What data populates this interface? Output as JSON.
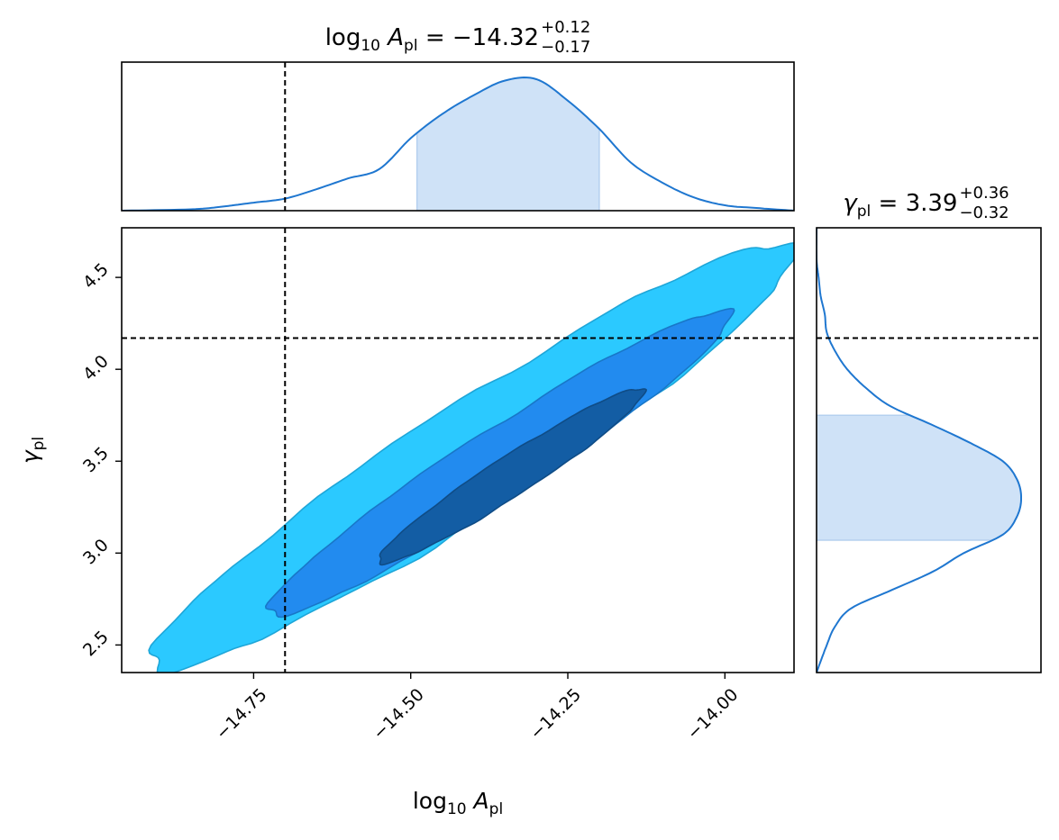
{
  "chart_data": {
    "type": "corner",
    "params": [
      {
        "id": "log10_A_pl",
        "label_base": "log",
        "label_sub1": "10",
        "label_var": "A",
        "label_sub2": "pl",
        "title_value": "= −14.32",
        "title_plus": "+0.12",
        "title_minus": "−0.17",
        "median": -14.32,
        "err_plus": 0.12,
        "err_minus": 0.17,
        "range": [
          -14.96,
          -13.89
        ],
        "ticks": [
          -14.75,
          -14.5,
          -14.25,
          -14.0
        ],
        "tick_labels": [
          "−14.75",
          "−14.50",
          "−14.25",
          "−14.00"
        ],
        "truth": -14.7
      },
      {
        "id": "gamma_pl",
        "label_var": "γ",
        "label_sub2": "pl",
        "title_value": "= 3.39",
        "title_plus": "+0.36",
        "title_minus": "−0.32",
        "median": 3.39,
        "err_plus": 0.36,
        "err_minus": 0.32,
        "range": [
          2.35,
          4.77
        ],
        "ticks": [
          2.5,
          3.0,
          3.5,
          4.0,
          4.5
        ],
        "tick_labels": [
          "2.5",
          "3.0",
          "3.5",
          "4.0",
          "4.5"
        ],
        "truth": 4.17
      }
    ],
    "marginal_A": {
      "x": [
        -14.96,
        -14.85,
        -14.8,
        -14.75,
        -14.7,
        -14.65,
        -14.6,
        -14.55,
        -14.5,
        -14.45,
        -14.4,
        -14.35,
        -14.3,
        -14.25,
        -14.2,
        -14.15,
        -14.1,
        -14.05,
        -14.0,
        -13.95,
        -13.89
      ],
      "density": [
        0.0,
        0.01,
        0.03,
        0.06,
        0.09,
        0.16,
        0.24,
        0.31,
        0.54,
        0.72,
        0.86,
        0.97,
        0.98,
        0.82,
        0.61,
        0.36,
        0.21,
        0.1,
        0.04,
        0.02,
        0.0
      ],
      "band": [
        -14.49,
        -14.2
      ]
    },
    "marginal_gamma": {
      "y": [
        2.35,
        2.5,
        2.6,
        2.7,
        2.8,
        2.9,
        3.0,
        3.1,
        3.2,
        3.3,
        3.4,
        3.5,
        3.6,
        3.7,
        3.8,
        3.9,
        4.0,
        4.1,
        4.2,
        4.3,
        4.4,
        4.5,
        4.6,
        4.77
      ],
      "density": [
        0.0,
        0.05,
        0.09,
        0.17,
        0.37,
        0.57,
        0.72,
        0.91,
        0.98,
        1.0,
        0.98,
        0.91,
        0.75,
        0.56,
        0.36,
        0.24,
        0.15,
        0.09,
        0.05,
        0.04,
        0.02,
        0.01,
        0.0,
        0.0
      ],
      "band": [
        3.07,
        3.75
      ]
    },
    "contour_levels": [
      {
        "name": "outer",
        "color": "#2bc9ff"
      },
      {
        "name": "middle",
        "color": "#228bef"
      },
      {
        "name": "inner",
        "color": "#135da4"
      }
    ],
    "colors": {
      "line": "#1f77d0",
      "band": "#cfe2f7",
      "truth": "#000000"
    }
  }
}
